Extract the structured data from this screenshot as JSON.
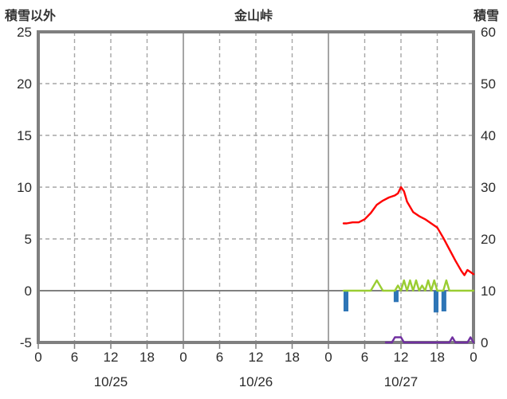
{
  "header": {
    "left_axis_title": "積雪以外",
    "chart_title": "金山峠",
    "right_axis_title": "積雪"
  },
  "colors": {
    "frame": "#7f7f7f",
    "grid_dashed": "#a6a6a6",
    "grid_day_line": "#9b9b9b",
    "zero_line": "#808080",
    "text": "#2b2b2b",
    "red_line": "#ff0000",
    "yellowgreen_line": "#9acd32",
    "purple_line": "#7030a0",
    "blue_bar": "#2e75b6",
    "background": "#ffffff"
  },
  "chart_data": {
    "type": "line",
    "title": "金山峠",
    "grid": true,
    "legend": "none",
    "x_axis": {
      "unit": "hour",
      "range_hours": [
        0,
        72
      ],
      "tick_interval_hours": 6,
      "tick_labels": [
        "0",
        "6",
        "12",
        "18",
        "0",
        "6",
        "12",
        "18",
        "0",
        "6",
        "12",
        "18",
        "0"
      ],
      "date_labels": [
        "10/25",
        "10/26",
        "10/27"
      ]
    },
    "left_axis": {
      "title": "積雪以外",
      "min": -5,
      "max": 25,
      "ticks": [
        25,
        20,
        15,
        10,
        5,
        0,
        -5
      ]
    },
    "right_axis": {
      "title": "積雪",
      "min": 0,
      "max": 60,
      "ticks": [
        60,
        50,
        40,
        30,
        20,
        10,
        0
      ]
    },
    "series": [
      {
        "name": "blue-bars",
        "type": "bar",
        "axis": "left",
        "color": "#2e75b6",
        "bar_width_hours": 0.8,
        "points": [
          [
            50.9,
            -2.0
          ],
          [
            59.2,
            -1.1
          ],
          [
            65.8,
            -2.1
          ],
          [
            67.1,
            -2.0
          ]
        ]
      },
      {
        "name": "purple-line",
        "type": "line",
        "axis": "right",
        "color": "#7030a0",
        "points": [
          [
            57.5,
            0
          ],
          [
            58.5,
            0
          ],
          [
            59,
            1
          ],
          [
            60,
            1
          ],
          [
            60.5,
            0
          ],
          [
            62,
            0
          ],
          [
            64,
            0
          ],
          [
            66,
            0
          ],
          [
            68,
            0
          ],
          [
            68.5,
            1
          ],
          [
            69,
            0
          ],
          [
            70,
            0
          ],
          [
            71,
            0
          ],
          [
            71.5,
            1
          ],
          [
            72,
            0
          ]
        ]
      },
      {
        "name": "yellowgreen-line",
        "type": "line",
        "axis": "right",
        "color": "#9acd32",
        "points": [
          [
            50.5,
            10
          ],
          [
            55,
            10
          ],
          [
            56,
            12
          ],
          [
            57,
            10
          ],
          [
            59,
            10
          ],
          [
            59.5,
            11
          ],
          [
            60,
            10
          ],
          [
            60.5,
            12
          ],
          [
            61,
            10
          ],
          [
            61.5,
            12
          ],
          [
            62,
            10
          ],
          [
            62.5,
            12
          ],
          [
            63,
            10
          ],
          [
            63.5,
            11
          ],
          [
            64,
            10
          ],
          [
            64.5,
            12
          ],
          [
            65,
            10
          ],
          [
            65.5,
            12
          ],
          [
            66,
            10
          ],
          [
            67,
            10
          ],
          [
            67.5,
            12
          ],
          [
            68,
            10
          ],
          [
            70,
            10
          ],
          [
            72,
            10
          ]
        ]
      },
      {
        "name": "red-line",
        "type": "line",
        "axis": "left",
        "color": "#ff0000",
        "points": [
          [
            50.5,
            6.5
          ],
          [
            51,
            6.5
          ],
          [
            52,
            6.6
          ],
          [
            53,
            6.6
          ],
          [
            54,
            6.9
          ],
          [
            55,
            7.5
          ],
          [
            56,
            8.3
          ],
          [
            57,
            8.7
          ],
          [
            58,
            9.0
          ],
          [
            59,
            9.2
          ],
          [
            59.5,
            9.4
          ],
          [
            60,
            10.0
          ],
          [
            60.5,
            9.6
          ],
          [
            61,
            8.6
          ],
          [
            62,
            7.6
          ],
          [
            63,
            7.2
          ],
          [
            64,
            6.9
          ],
          [
            65,
            6.5
          ],
          [
            66,
            6.1
          ],
          [
            67,
            5.1
          ],
          [
            68,
            4.0
          ],
          [
            69,
            2.9
          ],
          [
            70,
            1.9
          ],
          [
            70.5,
            1.5
          ],
          [
            71,
            2.0
          ],
          [
            72,
            1.6
          ]
        ]
      }
    ]
  }
}
